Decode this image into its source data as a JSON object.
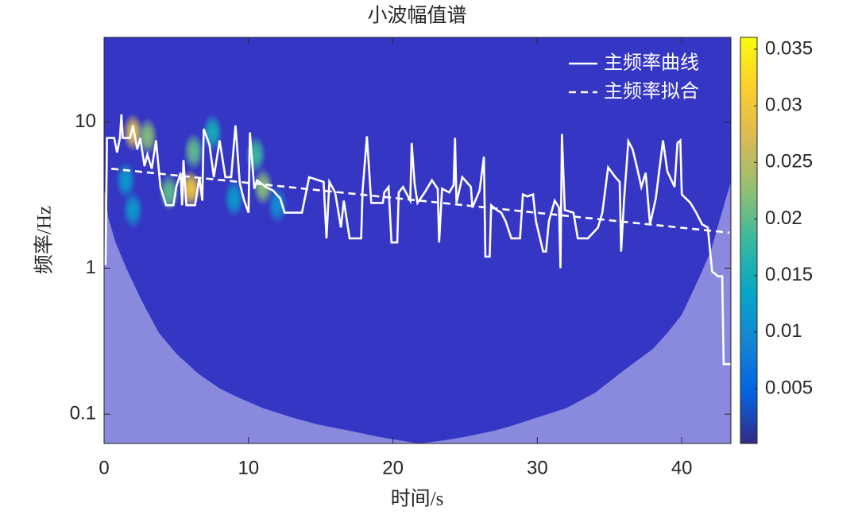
{
  "chart_data": {
    "type": "scalogram",
    "title": "小波幅值谱",
    "x_label": "时间/s",
    "y_label": "频率/Hz",
    "xlim": [
      0,
      43.4
    ],
    "xticks": [
      0,
      10,
      20,
      30,
      40
    ],
    "ylim": [
      0.063,
      38.1
    ],
    "yticks": [
      0.1,
      1,
      10
    ],
    "log_y": true,
    "clim": [
      0.00015,
      0.03605
    ],
    "cticks": [
      0.005,
      0.01,
      0.015,
      0.02,
      0.025,
      0.03,
      0.035
    ],
    "colormap": [
      "#352a87",
      "#0363e1",
      "#1485d4",
      "#06a7c6",
      "#38b99e",
      "#92bf73",
      "#d9ba56",
      "#fcce2e",
      "#f9fb0e"
    ],
    "legend": "upper right",
    "hotspots": [
      {
        "x": 2.0,
        "f": 8.5,
        "amp": 0.028
      },
      {
        "x": 3.0,
        "f": 8.0,
        "amp": 0.022
      },
      {
        "x": 6.0,
        "f": 3.5,
        "amp": 0.03
      },
      {
        "x": 4.5,
        "f": 3.3,
        "amp": 0.02
      },
      {
        "x": 1.5,
        "f": 4.0,
        "amp": 0.012
      },
      {
        "x": 6.2,
        "f": 6.3,
        "amp": 0.02
      },
      {
        "x": 7.5,
        "f": 8.5,
        "amp": 0.015
      },
      {
        "x": 10.5,
        "f": 6.0,
        "amp": 0.018
      },
      {
        "x": 11.0,
        "f": 3.6,
        "amp": 0.022
      },
      {
        "x": 9.0,
        "f": 3.0,
        "amp": 0.012
      },
      {
        "x": 12.0,
        "f": 2.7,
        "amp": 0.01
      },
      {
        "x": 2.0,
        "f": 2.5,
        "amp": 0.012
      }
    ],
    "cone": {
      "x": [
        0,
        0.3,
        0.8,
        1.6,
        2.6,
        3.8,
        5,
        6.5,
        8,
        9.3,
        11,
        13,
        14.8,
        17,
        19,
        20.5,
        21.8,
        23.5,
        25,
        27,
        28,
        30,
        32,
        34,
        36,
        38,
        39,
        40,
        41.2,
        42,
        42.6,
        43.4
      ],
      "values": [
        3.6,
        2.2,
        1.5,
        0.97,
        0.6,
        0.36,
        0.26,
        0.19,
        0.15,
        0.13,
        0.11,
        0.095,
        0.085,
        0.077,
        0.07,
        0.066,
        0.063,
        0.066,
        0.07,
        0.077,
        0.082,
        0.095,
        0.11,
        0.14,
        0.2,
        0.28,
        0.36,
        0.48,
        0.86,
        1.3,
        2.1,
        3.9
      ]
    },
    "series": [
      {
        "name": "主频率曲线",
        "color": "#ffffff",
        "dash": false,
        "x": [
          0.1,
          0.2,
          0.7,
          0.9,
          1.1,
          1.2,
          1.3,
          1.8,
          2.0,
          2.3,
          2.5,
          2.8,
          3.0,
          3.3,
          3.6,
          3.9,
          4.3,
          4.8,
          5.0,
          5.3,
          5.4,
          5.5,
          5.7,
          6.3,
          6.6,
          6.8,
          6.9,
          7.3,
          7.6,
          8.0,
          8.4,
          8.8,
          9.1,
          9.4,
          9.7,
          10.0,
          10.1,
          10.4,
          10.6,
          11.2,
          11.7,
          12.2,
          12.5,
          13.7,
          14.2,
          15.2,
          15.4,
          15.6,
          16.0,
          16.4,
          16.6,
          17.0,
          17.8,
          17.9,
          18.2,
          18.5,
          19.3,
          19.4,
          19.7,
          19.9,
          20.3,
          20.4,
          20.7,
          21.2,
          21.3,
          21.5,
          21.7,
          22.2,
          22.7,
          23.1,
          23.2,
          23.4,
          23.9,
          24.2,
          24.3,
          24.4,
          24.8,
          25.4,
          25.5,
          26.0,
          26.3,
          26.4,
          26.7,
          26.8,
          27.2,
          27.5,
          27.8,
          28.2,
          28.8,
          29.0,
          29.3,
          29.7,
          29.9,
          30.4,
          30.6,
          30.8,
          31.2,
          31.5,
          31.6,
          31.7,
          31.9,
          32.5,
          32.8,
          33.5,
          34.2,
          34.5,
          34.9,
          35.4,
          35.7,
          35.8,
          36.0,
          36.3,
          36.6,
          36.9,
          37.2,
          37.5,
          37.8,
          38.2,
          38.7,
          39.0,
          39.5,
          39.7,
          39.9,
          40.0,
          40.6,
          41.0,
          41.4,
          41.8,
          42.1,
          42.5,
          42.8,
          42.9,
          43.4
        ],
        "values": [
          1.05,
          7.8,
          7.8,
          6.2,
          7.8,
          11.3,
          7.8,
          7.8,
          9.5,
          6.5,
          7.8,
          5.0,
          6.0,
          4.8,
          7.5,
          3.6,
          2.7,
          2.7,
          3.6,
          4.5,
          2.7,
          5.5,
          2.7,
          2.7,
          4.2,
          2.9,
          9.0,
          7.0,
          4.2,
          7.5,
          4.2,
          4.2,
          9.5,
          3.8,
          2.9,
          2.4,
          8.5,
          3.5,
          4.0,
          3.6,
          3.4,
          3.0,
          2.4,
          2.4,
          4.2,
          3.9,
          1.6,
          3.9,
          3.3,
          1.9,
          2.9,
          1.6,
          1.6,
          3.4,
          8.0,
          2.8,
          2.8,
          3.3,
          3.6,
          1.5,
          1.5,
          3.3,
          3.6,
          2.9,
          7.2,
          3.8,
          2.8,
          3.3,
          4.0,
          3.5,
          1.5,
          3.5,
          3.3,
          3.7,
          7.8,
          2.8,
          4.2,
          3.6,
          2.6,
          3.4,
          5.8,
          1.2,
          1.2,
          2.7,
          2.5,
          2.4,
          2.1,
          1.6,
          1.6,
          3.2,
          3.1,
          3.2,
          2.1,
          1.3,
          1.3,
          2.1,
          2.9,
          2.6,
          1.0,
          8.3,
          2.5,
          2.4,
          1.6,
          1.6,
          1.9,
          2.4,
          4.9,
          4.2,
          3.9,
          1.3,
          2.9,
          7.4,
          6.5,
          4.9,
          3.6,
          4.5,
          2.0,
          3.0,
          7.5,
          4.6,
          3.6,
          7.2,
          7.5,
          3.2,
          2.8,
          2.4,
          2.0,
          1.9,
          0.95,
          0.88,
          0.88,
          0.22,
          0.22
        ]
      },
      {
        "name": "主频率拟合",
        "color": "#ffffff",
        "dash": true,
        "x": [
          0.5,
          43.3
        ],
        "values": [
          4.8,
          1.75
        ]
      }
    ]
  }
}
